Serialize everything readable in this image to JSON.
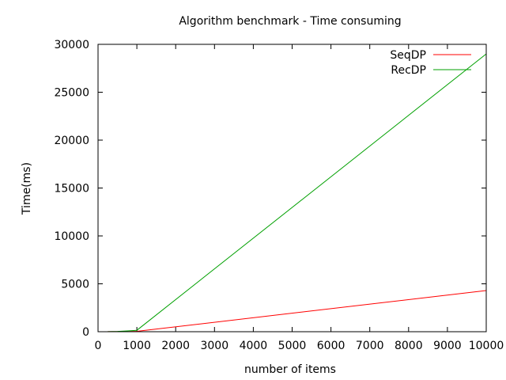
{
  "chart_data": {
    "type": "line",
    "title": "Algorithm benchmark - Time consuming",
    "xlabel": "number of items",
    "ylabel": "Time(ms)",
    "xlim": [
      0,
      10000
    ],
    "ylim": [
      0,
      30000
    ],
    "x_ticks": [
      "0",
      "1000",
      "2000",
      "3000",
      "4000",
      "5000",
      "6000",
      "7000",
      "8000",
      "9000",
      "10000"
    ],
    "y_ticks": [
      "0",
      "5000",
      "10000",
      "15000",
      "20000",
      "25000",
      "30000"
    ],
    "grid": false,
    "legend_position": "top-right",
    "series": [
      {
        "name": "SeqDP",
        "color": "#ff0000",
        "x": [
          250,
          500,
          750,
          1000,
          10000
        ],
        "y": [
          5,
          10,
          20,
          40,
          4300
        ]
      },
      {
        "name": "RecDP",
        "color": "#00a000",
        "x": [
          250,
          500,
          750,
          1000,
          10000
        ],
        "y": [
          10,
          30,
          80,
          150,
          29000
        ]
      }
    ]
  }
}
